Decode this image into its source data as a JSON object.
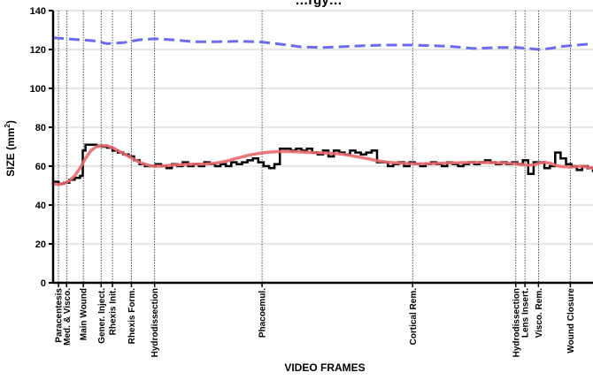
{
  "chart_data": {
    "type": "line",
    "title": "…rgy…",
    "xlabel": "VIDEO FRAMES",
    "ylabel": "SIZE (mm",
    "ylabel_sup": "2",
    "ylabel_close": ")",
    "ylim": [
      0,
      140
    ],
    "yticks": [
      "0",
      "20",
      "40",
      "60",
      "80",
      "100",
      "120",
      "140"
    ],
    "xlim": [
      0,
      1000
    ],
    "grid": "horizontal",
    "colors": {
      "dashed": "#6b6bf0",
      "raw": "#000000",
      "smoothed": "#e8696e"
    },
    "phases": [
      {
        "x": 10,
        "label": "Paracentesis"
      },
      {
        "x": 25,
        "label": "Med. & Visco."
      },
      {
        "x": 56,
        "label": "Main Wound"
      },
      {
        "x": 89,
        "label": "Gener. Inject."
      },
      {
        "x": 110,
        "label": "Rhexis Init."
      },
      {
        "x": 145,
        "label": "Rhexis Form."
      },
      {
        "x": 188,
        "label": "Hydrodissection"
      },
      {
        "x": 387,
        "label": "Phacoemul."
      },
      {
        "x": 666,
        "label": "Cortical Rem."
      },
      {
        "x": 857,
        "label": "Hydrodissection"
      },
      {
        "x": 874,
        "label": "Lens Insert."
      },
      {
        "x": 899,
        "label": "Visco. Rem."
      },
      {
        "x": 958,
        "label": "Wound Closure"
      }
    ],
    "series": [
      {
        "style": "dashed",
        "x": [
          0,
          25,
          50,
          75,
          100,
          130,
          160,
          190,
          220,
          260,
          300,
          340,
          380,
          420,
          460,
          500,
          540,
          580,
          620,
          660,
          700,
          740,
          780,
          820,
          860,
          880,
          900,
          920,
          940,
          960,
          980,
          1000
        ],
        "values": [
          126,
          125.5,
          125,
          124.5,
          123,
          123.5,
          125,
          125.5,
          125,
          124,
          124,
          124.2,
          124,
          122.8,
          121.3,
          121,
          121.5,
          122,
          122.3,
          122.3,
          122,
          121.5,
          120.5,
          121,
          121,
          120.5,
          120,
          120.5,
          121.5,
          122,
          122.5,
          123
        ]
      },
      {
        "style": "raw",
        "x": [
          0,
          10,
          20,
          30,
          40,
          50,
          55,
          60,
          70,
          80,
          90,
          100,
          110,
          120,
          130,
          140,
          150,
          160,
          170,
          180,
          190,
          200,
          210,
          220,
          230,
          240,
          250,
          260,
          270,
          280,
          290,
          300,
          310,
          320,
          330,
          340,
          350,
          360,
          370,
          380,
          390,
          400,
          410,
          420,
          430,
          440,
          450,
          460,
          470,
          480,
          490,
          500,
          510,
          520,
          530,
          540,
          550,
          560,
          570,
          580,
          590,
          600,
          610,
          620,
          630,
          640,
          650,
          660,
          670,
          680,
          690,
          700,
          710,
          720,
          730,
          740,
          750,
          760,
          770,
          780,
          790,
          800,
          810,
          820,
          830,
          840,
          850,
          860,
          870,
          880,
          890,
          900,
          910,
          920,
          930,
          940,
          950,
          960,
          970,
          980,
          990,
          1000
        ],
        "values": [
          52,
          51,
          51.5,
          53,
          54,
          55,
          68,
          71,
          71,
          70.5,
          70,
          69.5,
          68,
          67,
          66,
          65,
          63,
          61,
          60,
          60,
          61,
          60,
          59,
          61,
          60,
          62,
          60,
          61,
          60,
          62,
          61,
          60,
          61,
          60,
          62,
          61,
          62,
          63,
          64,
          62,
          60,
          59,
          61,
          69,
          69,
          68,
          69,
          68,
          69,
          67,
          66,
          68,
          65,
          68,
          67,
          66,
          68,
          67,
          66,
          67,
          68,
          62,
          62,
          60,
          61,
          62,
          60,
          62,
          61,
          60,
          61,
          62,
          61,
          60,
          62,
          61,
          60,
          61,
          62,
          61,
          62,
          63,
          62,
          61,
          62,
          61,
          62,
          61,
          63,
          56,
          62,
          62,
          59,
          60,
          67,
          64,
          61,
          60,
          58,
          60,
          59,
          57
        ]
      },
      {
        "style": "smoothed",
        "x": [
          0,
          10,
          20,
          30,
          40,
          50,
          60,
          70,
          80,
          90,
          100,
          110,
          120,
          130,
          140,
          150,
          160,
          170,
          180,
          190,
          200,
          220,
          240,
          260,
          280,
          300,
          320,
          340,
          360,
          380,
          400,
          420,
          440,
          460,
          480,
          500,
          520,
          540,
          560,
          580,
          600,
          620,
          640,
          660,
          680,
          700,
          720,
          740,
          760,
          780,
          800,
          820,
          840,
          860,
          870,
          880,
          890,
          900,
          910,
          920,
          930,
          940,
          950,
          960,
          970,
          980,
          990,
          1000
        ],
        "values": [
          51,
          50.5,
          51,
          52.5,
          55,
          59,
          64,
          68,
          70,
          70.5,
          70.5,
          69.5,
          68,
          66.5,
          65,
          63.5,
          62,
          61,
          60.2,
          60,
          60,
          60.5,
          60.8,
          61,
          61,
          61.5,
          62.5,
          64,
          65.5,
          66.5,
          67.2,
          67.5,
          67.5,
          67.3,
          67,
          66.8,
          66.5,
          66,
          65,
          64,
          62.8,
          62,
          61.6,
          61.3,
          61.2,
          61.3,
          61.5,
          61.7,
          61.8,
          62,
          61.9,
          61.7,
          61.5,
          61.2,
          60.8,
          60.5,
          60.7,
          61.5,
          62,
          61.5,
          60.5,
          59.8,
          59.7,
          59.5,
          59.8,
          60,
          59.5,
          59
        ]
      }
    ]
  }
}
